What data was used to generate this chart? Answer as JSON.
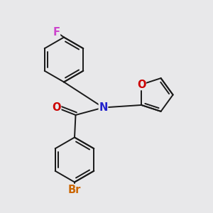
{
  "background_color": "#e8e8ea",
  "bond_color": "#1a1a1a",
  "bond_width": 1.4,
  "figsize": [
    3.0,
    3.0
  ],
  "dpi": 100,
  "atoms": {
    "F": {
      "color": "#cc44cc",
      "fontsize": 10.5
    },
    "O": {
      "color": "#cc0000",
      "fontsize": 10.5
    },
    "N": {
      "color": "#2222cc",
      "fontsize": 10.5
    },
    "Br": {
      "color": "#cc6600",
      "fontsize": 10.5
    }
  }
}
